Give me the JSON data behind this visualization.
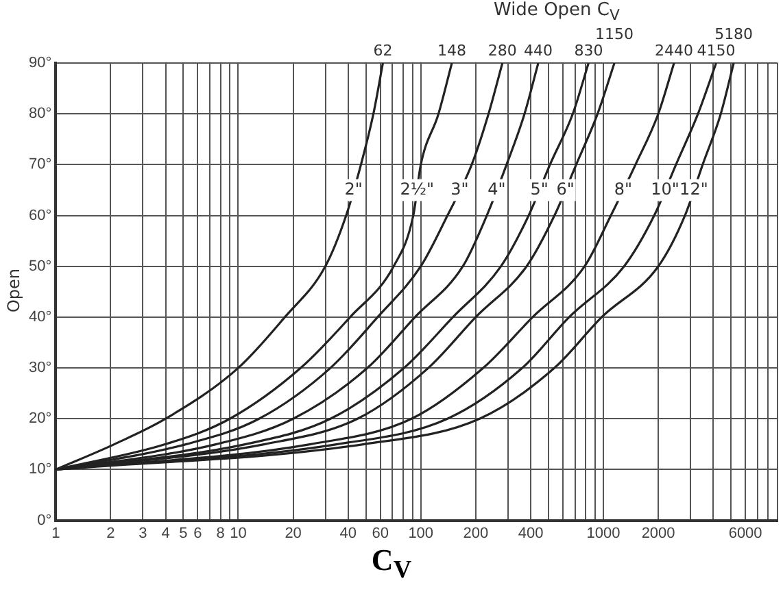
{
  "chart_data": {
    "type": "line",
    "title": "Wide Open C$_{V}$",
    "xlabel": "C$_{V}$",
    "ylabel": "Open",
    "log": "x",
    "grid": true,
    "legend": false,
    "marker": "none",
    "line_style": "solid",
    "xlim": [
      1,
      9000
    ],
    "ylim": [
      0,
      90
    ],
    "xticks": [
      1,
      2,
      3,
      4,
      5,
      6,
      {
        "value": 7,
        "label": null
      },
      8,
      {
        "value": 9,
        "label": null
      },
      10,
      20,
      {
        "value": 30,
        "label": null
      },
      40,
      {
        "value": 50,
        "label": null
      },
      60,
      {
        "value": 70,
        "label": null
      },
      {
        "value": 80,
        "label": null
      },
      {
        "value": 90,
        "label": null
      },
      100,
      200,
      {
        "value": 300,
        "label": null
      },
      400,
      {
        "value": 500,
        "label": null
      },
      {
        "value": 600,
        "label": null
      },
      {
        "value": 700,
        "label": null
      },
      {
        "value": 800,
        "label": null
      },
      {
        "value": 900,
        "label": null
      },
      1000,
      2000,
      {
        "value": 3000,
        "label": null
      },
      {
        "value": 4000,
        "label": null
      },
      {
        "value": 5000,
        "label": null
      },
      6000,
      {
        "value": 7000,
        "label": null
      },
      {
        "value": 8000,
        "label": null
      },
      {
        "value": 9000,
        "label": null
      }
    ],
    "yticks": [
      {
        "value": 0,
        "label": "0°"
      },
      {
        "value": 10,
        "label": "10°"
      },
      {
        "value": 20,
        "label": "20°"
      },
      {
        "value": 30,
        "label": "30°"
      },
      {
        "value": 40,
        "label": "40°"
      },
      {
        "value": 50,
        "label": "50°"
      },
      {
        "value": 60,
        "label": "60°"
      },
      {
        "value": 70,
        "label": "70°"
      },
      {
        "value": 80,
        "label": "80°"
      },
      {
        "value": 90,
        "label": "90°"
      }
    ],
    "series": [
      {
        "name": "2\"",
        "color": "#222222",
        "x": [
          1,
          2.1,
          4,
          10,
          18,
          30,
          39,
          47,
          55,
          62
        ],
        "values": [
          10,
          15,
          20,
          30,
          40,
          50,
          60,
          70,
          80,
          90
        ]
      },
      {
        "name": "2½\"",
        "color": "#222222",
        "x": [
          1,
          4,
          9,
          22,
          41,
          71,
          91,
          100,
          125,
          148
        ],
        "values": [
          10,
          15,
          20,
          30,
          40,
          50,
          60,
          70,
          80,
          90
        ]
      },
      {
        "name": "3\"",
        "color": "#222222",
        "x": [
          1,
          5.2,
          13,
          32,
          58,
          100,
          140,
          190,
          235,
          280
        ],
        "values": [
          10,
          15,
          20,
          30,
          40,
          50,
          60,
          70,
          80,
          90
        ]
      },
      {
        "name": "4\"",
        "color": "#222222",
        "x": [
          1,
          7.6,
          20,
          51,
          93,
          170,
          230,
          295,
          370,
          440
        ],
        "values": [
          10,
          15,
          20,
          30,
          40,
          50,
          60,
          70,
          80,
          90
        ]
      },
      {
        "name": "5\"",
        "color": "#222222",
        "x": [
          1,
          11,
          32,
          81,
          150,
          275,
          390,
          510,
          680,
          830
        ],
        "values": [
          10,
          15,
          20,
          30,
          40,
          50,
          60,
          70,
          80,
          90
        ]
      },
      {
        "name": "6\"",
        "color": "#222222",
        "x": [
          1,
          14,
          45,
          110,
          200,
          380,
          540,
          710,
          930,
          1150
        ],
        "values": [
          10,
          15,
          20,
          30,
          40,
          50,
          60,
          70,
          80,
          90
        ]
      },
      {
        "name": "8\"",
        "color": "#222222",
        "x": [
          1,
          25,
          89,
          220,
          410,
          790,
          1100,
          1500,
          2000,
          2440
        ],
        "values": [
          10,
          15,
          20,
          30,
          40,
          50,
          60,
          70,
          80,
          90
        ]
      },
      {
        "name": "10\"",
        "color": "#222222",
        "x": [
          1,
          35,
          140,
          360,
          650,
          1300,
          1900,
          2500,
          3300,
          4150
        ],
        "values": [
          10,
          15,
          20,
          30,
          40,
          50,
          60,
          70,
          80,
          90
        ]
      },
      {
        "name": "12\"",
        "color": "#222222",
        "x": [
          1,
          49,
          210,
          540,
          980,
          2000,
          2800,
          3500,
          4400,
          5180
        ],
        "values": [
          10,
          15,
          20,
          30,
          40,
          50,
          60,
          70,
          80,
          90
        ]
      }
    ],
    "annotations": [
      {
        "text": "62",
        "x": 62,
        "y": 90
      },
      {
        "text": "148",
        "x": 148,
        "y": 90
      },
      {
        "text": "280",
        "x": 280,
        "y": 90
      },
      {
        "text": "440",
        "x": 440,
        "y": 90
      },
      {
        "text": "830",
        "x": 830,
        "y": 90
      },
      {
        "text": "1150",
        "x": 1150,
        "y": 90
      },
      {
        "text": "2440",
        "x": 2440,
        "y": 90
      },
      {
        "text": "4150",
        "x": 4150,
        "y": 90
      },
      {
        "text": "5180",
        "x": 5180,
        "y": 90
      }
    ]
  }
}
